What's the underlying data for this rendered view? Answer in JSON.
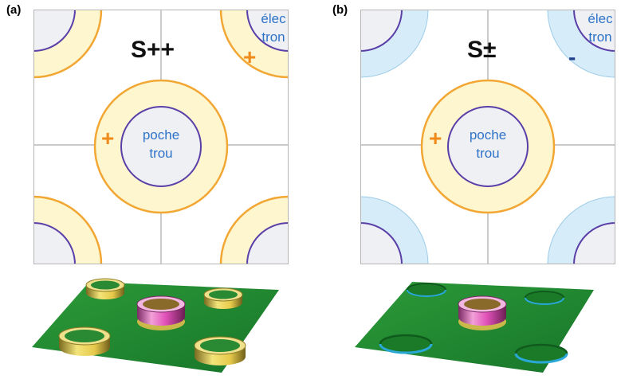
{
  "panels": [
    {
      "label": "(a)",
      "title": "S++",
      "hole_text": [
        "poche",
        "trou"
      ],
      "electron_text": [
        "élec",
        "tron"
      ],
      "hole_sign": "+",
      "electron_sign": "+",
      "electron_fill": "#fdf6cf",
      "electron_sign_color": "#f08a1a"
    },
    {
      "label": "(b)",
      "title": "S±",
      "hole_text": [
        "poche",
        "trou"
      ],
      "electron_text": [
        "élec",
        "tron"
      ],
      "hole_sign": "+",
      "electron_sign": "-",
      "electron_fill": "#d6ecf8",
      "electron_sign_color": "#1f3f8f"
    }
  ],
  "colors": {
    "hole_ring_fill": "#fdf6cf",
    "ring_orange": "#f2a735",
    "inner_purple": "#5b3fa8",
    "inner_fill": "#eef0f3",
    "grid_line": "#a9a9a9",
    "plate_green": "#1f8a2c",
    "hole_sign_color": "#f08a1a",
    "text_blue": "#2f73c9"
  }
}
